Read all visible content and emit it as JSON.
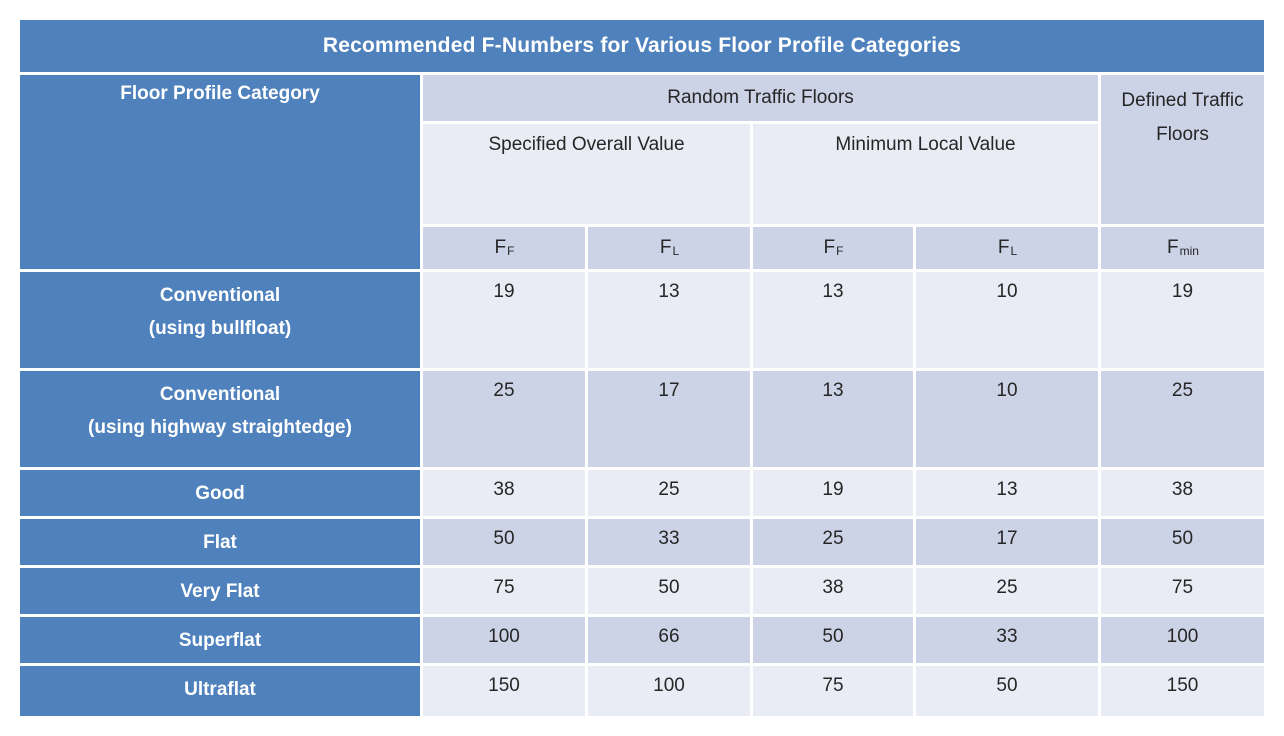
{
  "colors": {
    "accent_blue": "#4f81bd",
    "band_dark": "#ccd3e6",
    "band_light": "#e9ecf5",
    "text_dark": "#262626",
    "text_on_blue": "#ffffff",
    "grid_line": "#ffffff"
  },
  "table": {
    "title": "Recommended F-Numbers for Various Floor Profile Categories",
    "header": {
      "category": "Floor Profile Category",
      "random_traffic": "Random Traffic Floors",
      "defined_traffic": "Defined Traffic Floors",
      "specified_overall": "Specified Overall Value",
      "minimum_local": "Minimum Local Value",
      "f_columns": [
        {
          "base": "F",
          "sub": "F"
        },
        {
          "base": "F",
          "sub": "L"
        },
        {
          "base": "F",
          "sub": "F"
        },
        {
          "base": "F",
          "sub": "L"
        },
        {
          "base": "F",
          "sub": "min"
        }
      ]
    },
    "rows": [
      {
        "label": "Conventional\n(using bullfloat)",
        "values": [
          "19",
          "13",
          "13",
          "10",
          "19"
        ]
      },
      {
        "label": "Conventional\n(using highway straightedge)",
        "values": [
          "25",
          "17",
          "13",
          "10",
          "25"
        ]
      },
      {
        "label": "Good",
        "values": [
          "38",
          "25",
          "19",
          "13",
          "38"
        ]
      },
      {
        "label": "Flat",
        "values": [
          "50",
          "33",
          "25",
          "17",
          "50"
        ]
      },
      {
        "label": "Very Flat",
        "values": [
          "75",
          "50",
          "38",
          "25",
          "75"
        ]
      },
      {
        "label": "Superflat",
        "values": [
          "100",
          "66",
          "50",
          "33",
          "100"
        ]
      },
      {
        "label": "Ultraflat",
        "values": [
          "150",
          "100",
          "75",
          "50",
          "150"
        ]
      }
    ]
  },
  "chart_data": {
    "type": "table",
    "title": "Recommended F-Numbers for Various Floor Profile Categories",
    "column_groups": [
      "Random Traffic Floors: Specified Overall Value",
      "Random Traffic Floors: Minimum Local Value",
      "Defined Traffic Floors"
    ],
    "columns": [
      "Floor Profile Category",
      "FF (Specified Overall)",
      "FL (Specified Overall)",
      "FF (Minimum Local)",
      "FL (Minimum Local)",
      "Fmin"
    ],
    "rows": [
      [
        "Conventional (using bullfloat)",
        19,
        13,
        13,
        10,
        19
      ],
      [
        "Conventional (using highway straightedge)",
        25,
        17,
        13,
        10,
        25
      ],
      [
        "Good",
        38,
        25,
        19,
        13,
        38
      ],
      [
        "Flat",
        50,
        33,
        25,
        17,
        50
      ],
      [
        "Very Flat",
        75,
        50,
        38,
        25,
        75
      ],
      [
        "Superflat",
        100,
        66,
        50,
        33,
        100
      ],
      [
        "Ultraflat",
        150,
        100,
        75,
        50,
        150
      ]
    ]
  }
}
